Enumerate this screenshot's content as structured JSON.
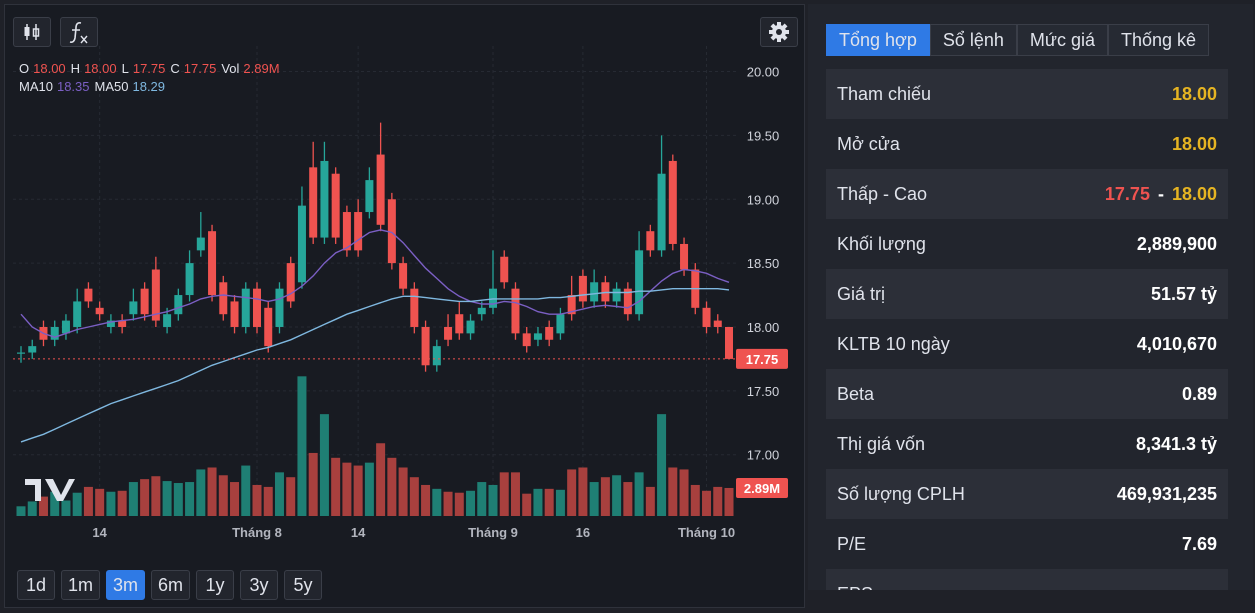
{
  "toolbar": {
    "ranges": [
      {
        "label": "1d",
        "active": false
      },
      {
        "label": "1m",
        "active": false
      },
      {
        "label": "3m",
        "active": true
      },
      {
        "label": "6m",
        "active": false
      },
      {
        "label": "1y",
        "active": false
      },
      {
        "label": "3y",
        "active": false
      },
      {
        "label": "5y",
        "active": false
      }
    ]
  },
  "chart_data": {
    "type": "candlestick",
    "legend": [
      {
        "label": "O",
        "value": "18.00"
      },
      {
        "label": "H",
        "value": "18.00"
      },
      {
        "label": "L",
        "value": "17.75"
      },
      {
        "label": "C",
        "value": "17.75"
      },
      {
        "label": "Vol",
        "value": "2.89M"
      }
    ],
    "categories": [
      null,
      null,
      null,
      null,
      null,
      null,
      null,
      "14",
      null,
      null,
      null,
      null,
      null,
      null,
      null,
      null,
      null,
      null,
      null,
      null,
      null,
      "Tháng 8",
      null,
      null,
      null,
      null,
      null,
      null,
      null,
      null,
      "14",
      null,
      null,
      null,
      null,
      null,
      null,
      null,
      null,
      null,
      null,
      null,
      "Tháng 9",
      null,
      null,
      null,
      null,
      null,
      null,
      null,
      "16",
      null,
      null,
      null,
      null,
      null,
      null,
      null,
      null,
      null,
      null,
      "Tháng 10",
      null,
      null
    ],
    "open": [
      17.8,
      17.8,
      18.0,
      17.9,
      17.95,
      18.0,
      18.3,
      18.15,
      18.0,
      18.05,
      18.1,
      18.3,
      18.45,
      18.0,
      18.1,
      18.25,
      18.6,
      18.75,
      18.35,
      18.2,
      18.0,
      18.3,
      18.15,
      18.0,
      18.5,
      18.35,
      19.25,
      18.7,
      19.2,
      18.9,
      18.9,
      18.9,
      19.35,
      19.0,
      18.5,
      18.3,
      18.0,
      17.7,
      18.0,
      18.1,
      17.95,
      18.1,
      18.15,
      18.55,
      18.3,
      17.95,
      17.9,
      18.0,
      17.95,
      18.25,
      18.4,
      18.2,
      18.35,
      18.2,
      18.3,
      18.1,
      18.75,
      18.6,
      19.3,
      18.65,
      18.45,
      18.15,
      18.05,
      18.0
    ],
    "high": [
      17.85,
      17.9,
      18.05,
      18.05,
      18.1,
      18.3,
      18.35,
      18.2,
      18.1,
      18.1,
      18.3,
      18.35,
      18.55,
      18.15,
      18.3,
      18.6,
      18.9,
      18.8,
      18.4,
      18.25,
      18.35,
      18.35,
      18.2,
      18.35,
      18.55,
      19.1,
      19.45,
      19.45,
      19.25,
      18.95,
      19.0,
      19.25,
      19.6,
      19.05,
      18.55,
      18.35,
      18.05,
      17.9,
      18.1,
      18.2,
      18.1,
      18.2,
      18.6,
      18.6,
      18.35,
      18.0,
      18.0,
      18.05,
      18.15,
      18.4,
      18.45,
      18.45,
      18.4,
      18.35,
      18.35,
      18.75,
      18.8,
      19.5,
      19.35,
      18.7,
      18.5,
      18.2,
      18.1,
      18.0
    ],
    "low": [
      17.72,
      17.75,
      17.85,
      17.85,
      17.9,
      17.95,
      18.15,
      18.05,
      17.95,
      17.95,
      18.05,
      18.05,
      18.0,
      17.95,
      18.05,
      18.2,
      18.55,
      18.2,
      18.05,
      17.95,
      17.95,
      17.95,
      17.8,
      17.95,
      18.15,
      18.3,
      18.65,
      18.65,
      18.65,
      18.55,
      18.55,
      18.85,
      18.75,
      18.45,
      18.25,
      17.95,
      17.65,
      17.65,
      17.85,
      17.9,
      17.9,
      18.05,
      18.1,
      18.3,
      17.9,
      17.8,
      17.85,
      17.85,
      17.9,
      18.05,
      18.15,
      18.15,
      18.15,
      18.15,
      18.05,
      18.05,
      18.55,
      18.55,
      18.6,
      18.4,
      18.1,
      17.95,
      17.95,
      17.75
    ],
    "close": [
      17.8,
      17.85,
      17.9,
      18.0,
      18.05,
      18.2,
      18.2,
      18.1,
      18.05,
      18.0,
      18.2,
      18.1,
      18.05,
      18.1,
      18.25,
      18.5,
      18.7,
      18.25,
      18.1,
      18.0,
      18.3,
      18.0,
      17.85,
      18.3,
      18.2,
      18.95,
      18.7,
      19.3,
      18.7,
      18.6,
      18.6,
      19.15,
      18.8,
      18.5,
      18.3,
      18.0,
      17.7,
      17.85,
      17.9,
      17.95,
      18.05,
      18.15,
      18.3,
      18.35,
      17.95,
      17.85,
      17.95,
      17.9,
      18.1,
      18.1,
      18.2,
      18.35,
      18.2,
      18.3,
      18.1,
      18.6,
      18.6,
      19.2,
      18.65,
      18.45,
      18.15,
      18.0,
      18.0,
      17.75
    ],
    "volume": [
      1.0,
      1.5,
      2.0,
      2.5,
      1.6,
      2.4,
      3.0,
      2.8,
      2.5,
      2.6,
      3.5,
      3.8,
      4.1,
      3.6,
      3.4,
      3.5,
      4.8,
      5.0,
      4.2,
      3.5,
      5.2,
      3.2,
      3.0,
      4.5,
      4.0,
      14.4,
      6.5,
      10.5,
      6.0,
      5.5,
      5.2,
      5.5,
      7.5,
      6.0,
      5.0,
      4.0,
      3.2,
      2.8,
      2.5,
      2.4,
      2.6,
      3.5,
      3.2,
      4.5,
      4.5,
      2.3,
      2.8,
      2.8,
      2.7,
      4.8,
      5.0,
      3.5,
      4.0,
      4.2,
      3.5,
      4.5,
      3.0,
      10.5,
      5.0,
      4.8,
      3.2,
      2.6,
      3.0,
      2.89
    ],
    "volume_label": "2.89M",
    "last_price_label": "17.75",
    "series": [
      {
        "name": "MA10",
        "color": "#7b5fc4",
        "values": [
          18.1,
          18.0,
          17.95,
          17.92,
          17.95,
          17.98,
          18.0,
          18.02,
          18.04,
          18.05,
          18.06,
          18.08,
          18.1,
          18.12,
          18.15,
          18.18,
          18.22,
          18.24,
          18.25,
          18.24,
          18.23,
          18.22,
          18.2,
          18.22,
          18.26,
          18.32,
          18.4,
          18.5,
          18.58,
          18.62,
          18.68,
          18.74,
          18.76,
          18.74,
          18.66,
          18.56,
          18.46,
          18.38,
          18.3,
          18.24,
          18.2,
          18.18,
          18.18,
          18.2,
          18.19,
          18.16,
          18.12,
          18.1,
          18.1,
          18.12,
          18.14,
          18.16,
          18.17,
          18.16,
          18.15,
          18.2,
          18.28,
          18.36,
          18.42,
          18.45,
          18.44,
          18.42,
          18.38,
          18.35
        ]
      },
      {
        "name": "MA50",
        "color": "#7fb8e0",
        "values": [
          17.1,
          17.13,
          17.16,
          17.2,
          17.24,
          17.28,
          17.32,
          17.36,
          17.4,
          17.43,
          17.46,
          17.49,
          17.52,
          17.55,
          17.58,
          17.62,
          17.66,
          17.7,
          17.73,
          17.76,
          17.79,
          17.82,
          17.84,
          17.87,
          17.9,
          17.94,
          17.98,
          18.02,
          18.06,
          18.1,
          18.13,
          18.16,
          18.19,
          18.22,
          18.24,
          18.24,
          18.23,
          18.22,
          18.21,
          18.2,
          18.2,
          18.21,
          18.22,
          18.22,
          18.22,
          18.22,
          18.22,
          18.23,
          18.23,
          18.24,
          18.25,
          18.26,
          18.27,
          18.27,
          18.27,
          18.28,
          18.28,
          18.29,
          18.3,
          18.3,
          18.3,
          18.3,
          18.3,
          18.29
        ]
      }
    ],
    "ylim": [
      16.52,
      20.2
    ],
    "yticks": [
      {
        "value": 17,
        "label": "17.00"
      },
      {
        "value": 17.5,
        "label": "17.50"
      },
      {
        "value": 18,
        "label": "18.00"
      },
      {
        "value": 18.5,
        "label": "18.50"
      },
      {
        "value": 19,
        "label": "19.00"
      },
      {
        "value": 19.5,
        "label": "19.50"
      },
      {
        "value": 20,
        "label": "20.00"
      }
    ],
    "grid": true,
    "up_color": "#26a69a",
    "down_color": "#ef5350",
    "volume_up_color": "#1f7f74",
    "volume_down_color": "#a8403e"
  },
  "tabs": [
    {
      "label": "Tổng hợp",
      "active": true
    },
    {
      "label": "Sổ lệnh",
      "active": false
    },
    {
      "label": "Mức giá",
      "active": false
    },
    {
      "label": "Thống kê",
      "active": false
    }
  ],
  "summary": {
    "rows": [
      {
        "label": "Tham chiếu",
        "value": "18.00",
        "color": "#e6b422"
      },
      {
        "label": "Mở cửa",
        "value": "18.00",
        "color": "#e6b422"
      },
      {
        "label": "Thấp - Cao",
        "low": "17.75",
        "low_color": "#ef5350",
        "separator": "-",
        "high": "18.00",
        "color": "#e6b422"
      },
      {
        "label": "Khối lượng",
        "value": "2,889,900",
        "color": "#ffffff"
      },
      {
        "label": "Giá trị",
        "value": "51.57 tỷ",
        "color": "#ffffff"
      },
      {
        "label": "KLTB 10 ngày",
        "value": "4,010,670",
        "color": "#ffffff"
      },
      {
        "label": "Beta",
        "value": "0.89",
        "color": "#ffffff"
      },
      {
        "label": "Thị giá vốn",
        "value": "8,341.3 tỷ",
        "color": "#ffffff"
      },
      {
        "label": "Số lượng CPLH",
        "value": "469,931,235",
        "color": "#ffffff"
      },
      {
        "label": "P/E",
        "value": "7.69",
        "color": "#ffffff"
      },
      {
        "label": "EPS"
      }
    ]
  }
}
